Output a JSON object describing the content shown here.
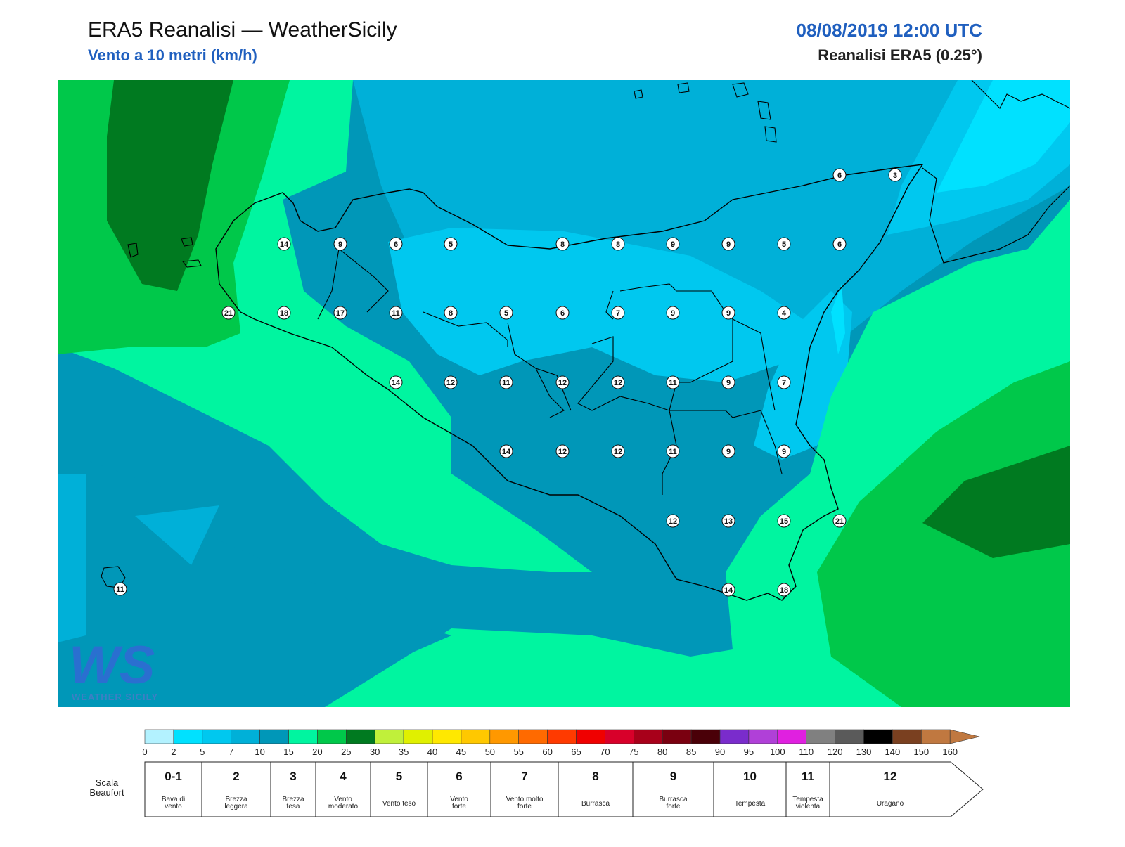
{
  "header": {
    "title": "ERA5 Reanalisi — WeatherSicily",
    "subtitle": "Vento a 10 metri (km/h)",
    "datetime": "08/08/2019 12:00 UTC",
    "source": "Reanalisi ERA5 (0.25°)"
  },
  "colors": {
    "c0_2": "#b3f2ff",
    "c2_5": "#00e1ff",
    "c5_7": "#00c8ef",
    "c7_10": "#00b0d8",
    "c10_15": "#0097b8",
    "c15_20": "#00f5a0",
    "c20_25": "#00c84a",
    "c25_30": "#007a20"
  },
  "stations": [
    {
      "v": "14"
    },
    {
      "v": "9"
    },
    {
      "v": "6"
    },
    {
      "v": "5"
    },
    {
      "v": "8"
    },
    {
      "v": "8"
    },
    {
      "v": "9"
    },
    {
      "v": "9"
    },
    {
      "v": "5"
    },
    {
      "v": "6"
    },
    {
      "v": "21"
    },
    {
      "v": "18"
    },
    {
      "v": "17"
    },
    {
      "v": "11"
    },
    {
      "v": "8"
    },
    {
      "v": "5"
    },
    {
      "v": "6"
    },
    {
      "v": "7"
    },
    {
      "v": "9"
    },
    {
      "v": "9"
    },
    {
      "v": "4"
    },
    {
      "v": "14"
    },
    {
      "v": "12"
    },
    {
      "v": "11"
    },
    {
      "v": "12"
    },
    {
      "v": "12"
    },
    {
      "v": "11"
    },
    {
      "v": "9"
    },
    {
      "v": "7"
    },
    {
      "v": "14"
    },
    {
      "v": "12"
    },
    {
      "v": "12"
    },
    {
      "v": "11"
    },
    {
      "v": "9"
    },
    {
      "v": "9"
    },
    {
      "v": "12"
    },
    {
      "v": "13"
    },
    {
      "v": "15"
    },
    {
      "v": "21"
    },
    {
      "v": "14"
    },
    {
      "v": "18"
    },
    {
      "v": "6"
    },
    {
      "v": "3"
    },
    {
      "v": "11"
    }
  ],
  "colorbar": {
    "ticks": [
      "0",
      "2",
      "5",
      "7",
      "10",
      "15",
      "20",
      "25",
      "30",
      "35",
      "40",
      "45",
      "50",
      "55",
      "60",
      "65",
      "70",
      "75",
      "80",
      "85",
      "90",
      "95",
      "100",
      "110",
      "120",
      "130",
      "140",
      "150",
      "160"
    ],
    "colors": [
      "#b3f2ff",
      "#00e1ff",
      "#00c8ef",
      "#00b0d8",
      "#0097b8",
      "#00f5a0",
      "#00c84a",
      "#007a20",
      "#c0f03a",
      "#e0f000",
      "#ffe800",
      "#ffc800",
      "#ff9800",
      "#ff6a00",
      "#ff3a00",
      "#f00000",
      "#d8002a",
      "#a8001a",
      "#7a0010",
      "#4a0008",
      "#7a2ccc",
      "#b040d8",
      "#e020e0",
      "#808080",
      "#5a5a5a",
      "#000000",
      "#7a4020",
      "#c07840"
    ]
  },
  "beaufort": {
    "title": "Scala Beaufort",
    "levels": [
      {
        "num": "0-1",
        "desc": [
          "Bava di",
          "vento"
        ]
      },
      {
        "num": "2",
        "desc": [
          "Brezza",
          "leggera"
        ]
      },
      {
        "num": "3",
        "desc": [
          "Brezza",
          "tesa"
        ]
      },
      {
        "num": "4",
        "desc": [
          "Vento",
          "moderato"
        ]
      },
      {
        "num": "5",
        "desc": [
          "Vento teso"
        ]
      },
      {
        "num": "6",
        "desc": [
          "Vento",
          "forte"
        ]
      },
      {
        "num": "7",
        "desc": [
          "Vento molto",
          "forte"
        ]
      },
      {
        "num": "8",
        "desc": [
          "Burrasca"
        ]
      },
      {
        "num": "9",
        "desc": [
          "Burrasca",
          "forte"
        ]
      },
      {
        "num": "10",
        "desc": [
          "Tempesta"
        ]
      },
      {
        "num": "11",
        "desc": [
          "Tempesta",
          "violenta"
        ]
      },
      {
        "num": "12",
        "desc": [
          "Uragano"
        ]
      }
    ]
  },
  "logo": {
    "mark": "WS",
    "text": "WEATHER SICILY"
  }
}
